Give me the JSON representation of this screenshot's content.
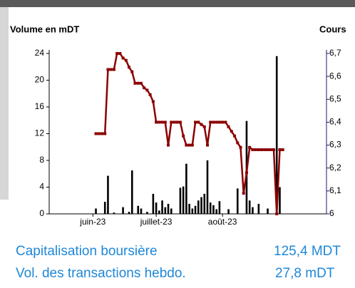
{
  "chart_data": {
    "type": "bar-line",
    "y_title": "Volume en mDT",
    "y2_title": "Cours",
    "categories": [
      null,
      null,
      null,
      null,
      null,
      null,
      null,
      null,
      null,
      null,
      null,
      null,
      null,
      null,
      "juin-23",
      null,
      null,
      null,
      null,
      null,
      null,
      null,
      null,
      null,
      null,
      null,
      null,
      null,
      null,
      null,
      null,
      null,
      null,
      null,
      null,
      "juillet-23",
      null,
      null,
      null,
      null,
      null,
      null,
      null,
      null,
      null,
      null,
      null,
      null,
      null,
      null,
      null,
      null,
      null,
      null,
      null,
      null,
      null,
      "août-23",
      null,
      null,
      null,
      null,
      null,
      null,
      null,
      null,
      null,
      null,
      null,
      null,
      null,
      null,
      null,
      null,
      null,
      null,
      null,
      null,
      null,
      null,
      null,
      null,
      null,
      null,
      null,
      null,
      null,
      null,
      null,
      null,
      null,
      null
    ],
    "ylim": [
      0,
      24
    ],
    "yticks": [
      0,
      4,
      8,
      12,
      16,
      20,
      24
    ],
    "y2lim": [
      6,
      6.7
    ],
    "y2ticks": [
      6,
      {
        "value": 6.1,
        "label": "6,1"
      },
      {
        "value": 6.2,
        "label": "6,2"
      },
      {
        "value": 6.3,
        "label": "6,3"
      },
      {
        "value": 6.4,
        "label": "6,4"
      },
      {
        "value": 6.5,
        "label": "6,5"
      },
      {
        "value": 6.6,
        "label": "6,6"
      },
      {
        "value": 6.7,
        "label": "6,7"
      }
    ],
    "series": [
      {
        "type": "bar",
        "color": "#000000",
        "values": [
          null,
          null,
          null,
          null,
          null,
          null,
          null,
          null,
          null,
          null,
          null,
          null,
          null,
          null,
          null,
          0.8,
          null,
          null,
          1.8,
          5.7,
          null,
          0.2,
          null,
          null,
          1.0,
          null,
          0.3,
          6.5,
          null,
          1.2,
          0.8,
          null,
          0.3,
          null,
          3.0,
          1.7,
          0.5,
          2.0,
          1.0,
          1.5,
          0.8,
          null,
          null,
          3.9,
          4.1,
          7.5,
          1.5,
          0.8,
          1.2,
          2.0,
          2.5,
          3.0,
          8.0,
          1.7,
          1.3,
          0.7,
          1.9,
          null,
          null,
          0.7,
          null,
          null,
          3.8,
          null,
          null,
          13.9,
          2.0,
          1.0,
          null,
          1.5,
          null,
          null,
          0.8,
          null,
          null,
          23.6,
          4.0,
          null,
          null,
          null,
          null,
          null,
          null,
          null,
          null,
          null,
          null,
          null,
          null,
          null,
          null,
          null
        ]
      },
      {
        "type": "line",
        "axis": "y2",
        "color": "#8b0000",
        "values": [
          null,
          null,
          null,
          null,
          null,
          null,
          null,
          null,
          null,
          null,
          null,
          null,
          null,
          null,
          null,
          6.35,
          6.35,
          6.35,
          6.35,
          6.63,
          6.63,
          6.63,
          6.7,
          6.7,
          6.68,
          6.67,
          6.64,
          6.62,
          6.57,
          6.57,
          6.57,
          6.55,
          6.54,
          6.52,
          6.49,
          6.4,
          6.4,
          6.4,
          6.4,
          6.3,
          6.4,
          6.4,
          6.4,
          6.4,
          6.34,
          6.3,
          6.3,
          6.3,
          6.4,
          6.4,
          6.39,
          6.38,
          6.3,
          6.4,
          6.4,
          6.4,
          6.4,
          6.4,
          6.4,
          6.38,
          6.36,
          6.34,
          6.31,
          6.29,
          6.09,
          6.18,
          6.29,
          6.28,
          6.28,
          6.28,
          6.28,
          6.28,
          6.28,
          6.28,
          6.28,
          6.0,
          6.28,
          6.28,
          null,
          null,
          null,
          null,
          null,
          null,
          null,
          null,
          null,
          null,
          null,
          null,
          null,
          null
        ]
      }
    ]
  },
  "summary": [
    {
      "label": "Capitalisation boursière",
      "value": "125,4 MDT"
    },
    {
      "label": "Vol. des transactions hebdo.",
      "value": "27,8 mDT"
    }
  ]
}
